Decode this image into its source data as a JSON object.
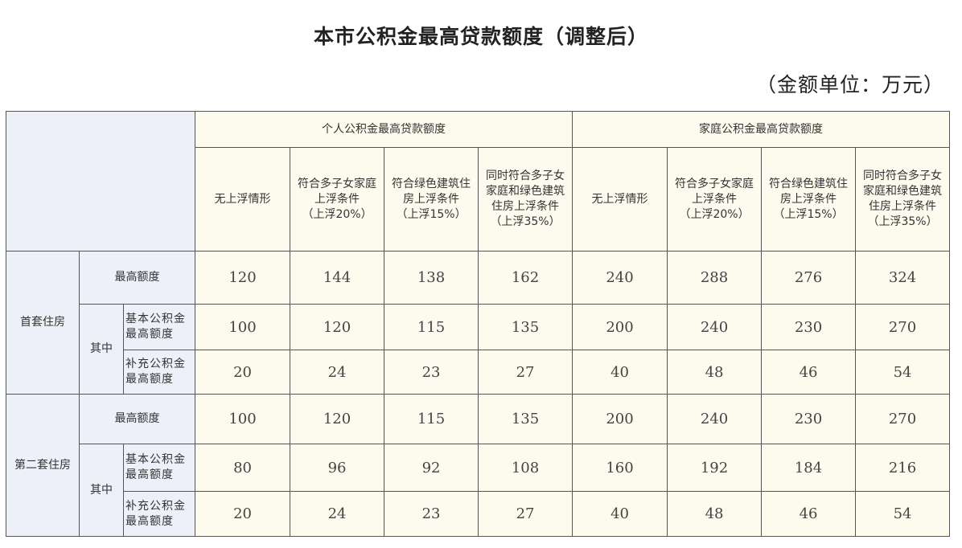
{
  "title": "本市公积金最高贷款额度（调整后）",
  "unit": "（金额单位：万元）",
  "groups": [
    "个人公积金最高贷款额度",
    "家庭公积金最高贷款额度"
  ],
  "columns": [
    [
      "无上浮情形"
    ],
    [
      "符合多子女家庭",
      "上浮条件",
      "（上浮20%）"
    ],
    [
      "符合绿色建筑住",
      "房上浮条件",
      "（上浮15%）"
    ],
    [
      "同时符合多子女",
      "家庭和绿色建筑",
      "住房上浮条件",
      "（上浮35%）"
    ]
  ],
  "row_labels": {
    "max": "最高额度",
    "of_which": "其中",
    "basic": [
      "基本公积金",
      "最高额度"
    ],
    "supp": [
      "补充公积金",
      "最高额度"
    ]
  },
  "sections": [
    {
      "name": "首套住房",
      "max": [
        "120",
        "144",
        "138",
        "162",
        "240",
        "288",
        "276",
        "324"
      ],
      "basic": [
        "100",
        "120",
        "115",
        "135",
        "200",
        "240",
        "230",
        "270"
      ],
      "supp": [
        "20",
        "24",
        "23",
        "27",
        "40",
        "48",
        "46",
        "54"
      ]
    },
    {
      "name": "第二套住房",
      "max": [
        "100",
        "120",
        "115",
        "135",
        "200",
        "240",
        "230",
        "270"
      ],
      "basic": [
        "80",
        "96",
        "92",
        "108",
        "160",
        "192",
        "184",
        "216"
      ],
      "supp": [
        "20",
        "24",
        "23",
        "27",
        "40",
        "48",
        "46",
        "54"
      ]
    }
  ],
  "colors": {
    "label_bg": "#edf0f8",
    "data_bg": "#fdfbee",
    "border": "#555555"
  }
}
